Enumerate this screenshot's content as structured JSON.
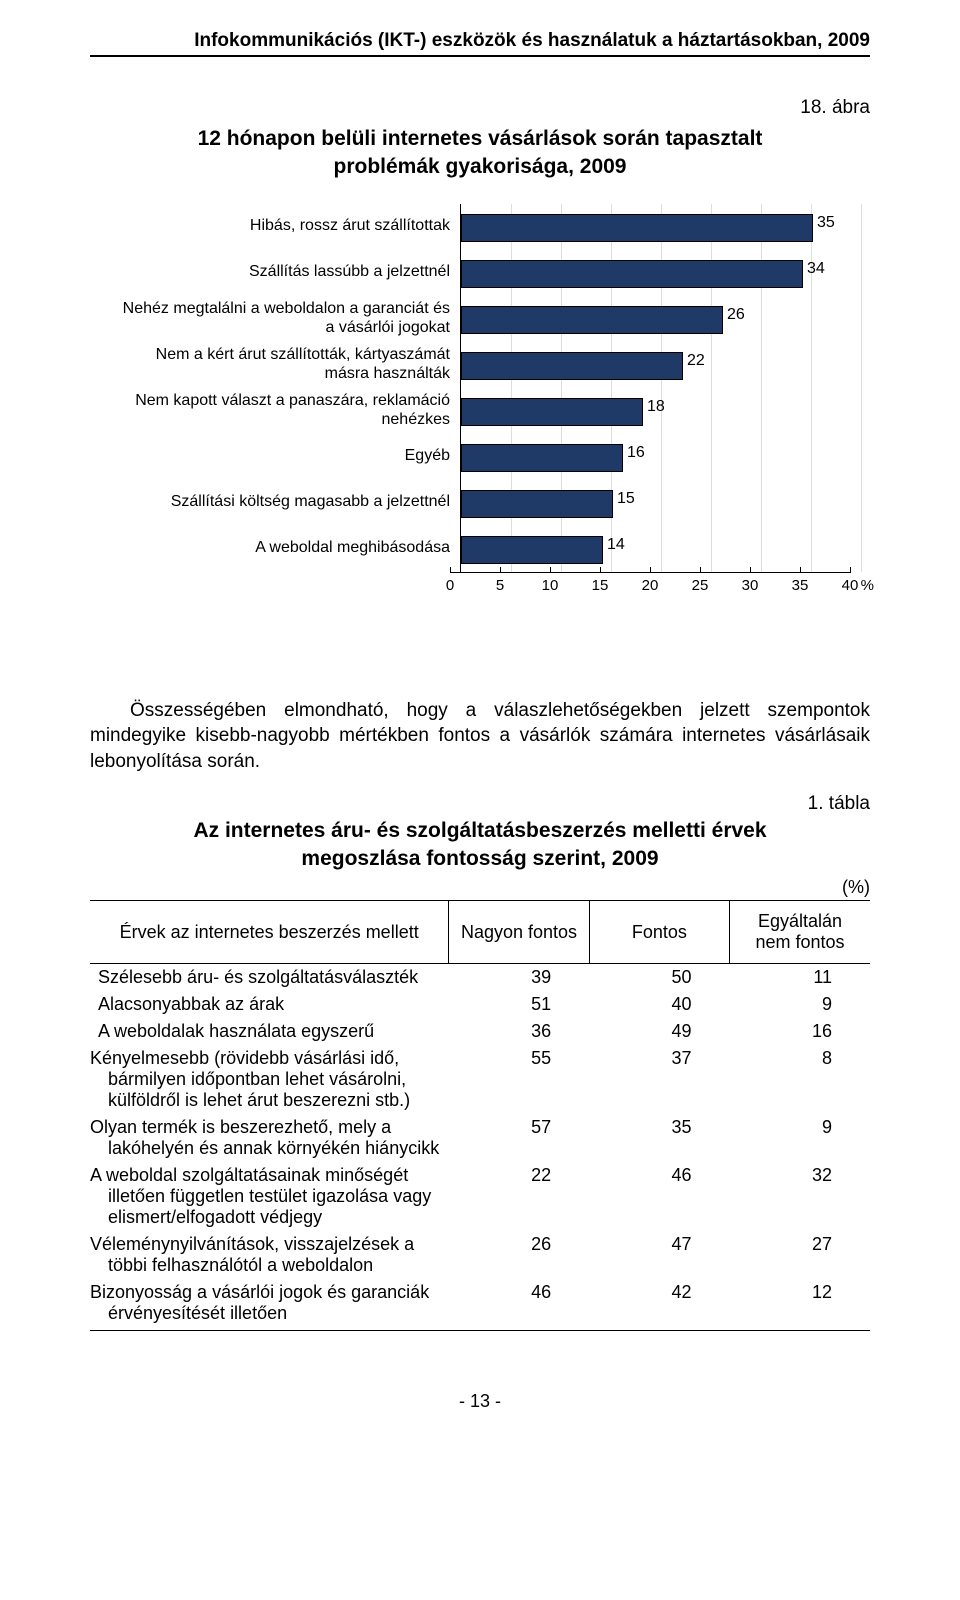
{
  "header_title": "Infokommunikációs (IKT-) eszközök és használatuk a háztartásokban, 2009",
  "figure_label": "18. ábra",
  "chart": {
    "type": "bar-horizontal",
    "title": "12 hónapon belüli internetes vásárlások során tapasztalt problémák gyakorisága, 2009",
    "bar_color": "#1f3a66",
    "bar_border": "#000000",
    "background_color": "#ffffff",
    "grid_color": "#dddddd",
    "label_fontsize": 16,
    "value_fontsize": 16,
    "xlim": [
      0,
      40
    ],
    "xtick_step": 5,
    "x_unit": "%",
    "ticks": [
      0,
      5,
      10,
      15,
      20,
      25,
      30,
      35,
      40
    ],
    "bars": [
      {
        "label": "Hibás, rossz árut szállítottak",
        "value": 35
      },
      {
        "label": "Szállítás lassúbb a jelzettnél",
        "value": 34
      },
      {
        "label": "Nehéz megtalálni a weboldalon a garanciát és a vásárlói jogokat",
        "value": 26
      },
      {
        "label": "Nem a kért árut szállították, kártyaszámát másra használták",
        "value": 22
      },
      {
        "label": "Nem kapott választ a panaszára, reklamáció nehézkes",
        "value": 18
      },
      {
        "label": "Egyéb",
        "value": 16
      },
      {
        "label": "Szállítási költség magasabb a jelzettnél",
        "value": 15
      },
      {
        "label": "A weboldal meghibásodása",
        "value": 14
      }
    ]
  },
  "paragraph": "Összességében elmondható, hogy a válaszlehetőségekben jelzett szempontok mindegyike kisebb-nagyobb mértékben fontos a vásárlók számára internetes vásárlásaik lebonyolítása során.",
  "table_label": "1. tábla",
  "table": {
    "title": "Az internetes áru- és szolgáltatásbeszerzés melletti érvek  megoszlása fontosság szerint, 2009",
    "unit": "(%)",
    "columns": [
      "Érvek az internetes beszerzés mellett",
      "Nagyon fontos",
      "Fontos",
      "Egyáltalán nem fontos"
    ],
    "col_widths_pct": [
      46,
      18,
      18,
      18
    ],
    "rows": [
      {
        "label": "Szélesebb áru- és szolgáltatásválaszték",
        "vals": [
          39,
          50,
          11
        ]
      },
      {
        "label": "Alacsonyabbak az árak",
        "vals": [
          51,
          40,
          9
        ]
      },
      {
        "label": "A weboldalak használata egyszerű",
        "vals": [
          36,
          49,
          16
        ]
      },
      {
        "label": "Kényelmesebb (rövidebb vásárlási idő, bármilyen időpontban lehet vásárolni, külföldről is lehet árut beszerezni stb.)",
        "vals": [
          55,
          37,
          8
        ],
        "hang": true
      },
      {
        "label": "Olyan termék is beszerezhető, mely a lakóhelyén és annak környékén hiánycikk",
        "vals": [
          57,
          35,
          9
        ],
        "hang": true
      },
      {
        "label": "A weboldal szolgáltatásainak minőségét illetően független testület igazolása vagy elismert/elfogadott védjegy",
        "vals": [
          22,
          46,
          32
        ],
        "hang": true
      },
      {
        "label": "Véleménynyilvánítások, visszajelzések a többi felhasználótól a weboldalon",
        "vals": [
          26,
          47,
          27
        ],
        "hang": true
      },
      {
        "label": "Bizonyosság a vásárlói jogok és garanciák érvényesítését illetően",
        "vals": [
          46,
          42,
          12
        ],
        "hang": true
      }
    ]
  },
  "page_number": "- 13 -"
}
